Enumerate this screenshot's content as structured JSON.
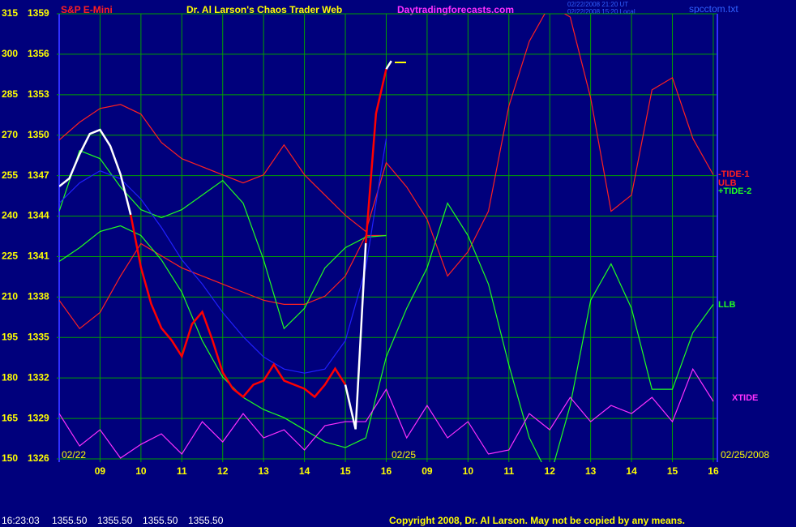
{
  "chart_data": {
    "type": "line",
    "title": "S&P E-Mini",
    "subtitle": "Dr. Al Larson's Chaos Trader Web",
    "site": "Daytradingforecasts.com",
    "timestamp_ut": "02/22/2008 21:20 UT",
    "timestamp_local": "02/22/2008 15:20 Local",
    "file": "spcctom.txt",
    "date_labels": [
      "02/22",
      "02/25",
      "02/25/2008"
    ],
    "status": {
      "time": "16:23:03",
      "quotes": [
        "1355.50",
        "1355.50",
        "1355.50",
        "1355.50"
      ]
    },
    "copyright": "Copyright 2008, Dr. Al Larson. May not be copied by any means.",
    "grid": true,
    "grid_color": "#00a000",
    "background": "#00007c",
    "xlim": [
      8,
      24.1
    ],
    "xticks": [
      {
        "value": 9,
        "label": "09"
      },
      10,
      11,
      12,
      13,
      14,
      15,
      16,
      {
        "value": 17,
        "label": "09"
      },
      {
        "value": 18,
        "label": "10"
      },
      {
        "value": 19,
        "label": "11"
      },
      {
        "value": 20,
        "label": "12"
      },
      {
        "value": 21,
        "label": "13"
      },
      {
        "value": 22,
        "label": "14"
      },
      {
        "value": 23,
        "label": "15"
      },
      {
        "value": 24,
        "label": "16"
      }
    ],
    "ylim": [
      1326,
      1359
    ],
    "yticks": [
      1326,
      1329,
      1332,
      1335,
      1338,
      1341,
      1344,
      1347,
      1350,
      1353,
      1356,
      1359
    ],
    "y2lim": [
      150,
      315
    ],
    "y2ticks": [
      150,
      165,
      180,
      195,
      210,
      225,
      240,
      255,
      270,
      285,
      300,
      315
    ],
    "x": [
      8,
      8.5,
      9,
      9.5,
      10,
      10.5,
      11,
      11.5,
      12,
      12.5,
      13,
      13.5,
      14,
      14.5,
      15,
      15.5,
      16,
      16.5,
      17,
      17.5,
      18,
      18.5,
      19,
      19.5,
      20,
      20.5,
      21,
      21.5,
      22,
      22.5,
      23,
      23.5,
      24
    ],
    "series": [
      {
        "name": "-TIDE-1",
        "color": "#ff2020",
        "axis": "y2",
        "values": [
          268.2,
          274.8,
          279.9,
          281.4,
          277.8,
          267.3,
          261.3,
          258.3,
          255.3,
          252.3,
          255.3,
          266.4,
          255.3,
          247.8,
          240.3,
          234.3,
          259.8,
          250.8,
          238.8,
          217.8,
          226.8,
          241.8,
          280.8,
          304.8,
          318.3,
          313.8,
          283.8,
          241.8,
          247.8,
          286.8,
          291.3,
          268.8,
          255.3
        ]
      },
      {
        "name": "ULB",
        "color": "#ff2020",
        "axis": "y2",
        "values": [
          208.8,
          198.3,
          204.3,
          217.8,
          229.8,
          225.3,
          220.8,
          217.8,
          214.8,
          211.8,
          208.8,
          207.3,
          207.3,
          210.3,
          217.8,
          232.8,
          232.8,
          null,
          null,
          null,
          null,
          null,
          null,
          null,
          null,
          null,
          null,
          null,
          null,
          null,
          null,
          null,
          null
        ]
      },
      {
        "name": "+TIDE-2",
        "color": "#20ff20",
        "axis": "y2",
        "values": [
          241.8,
          264.3,
          261.3,
          250.8,
          242.4,
          239.4,
          242.4,
          247.8,
          253.2,
          244.8,
          223.8,
          198.3,
          205.8,
          220.8,
          228.3,
          232.2,
          232.8,
          null,
          null,
          null,
          null,
          null,
          null,
          null,
          null,
          null,
          null,
          null,
          null,
          null,
          null,
          null,
          null
        ]
      },
      {
        "name": "LLB",
        "color": "#20ff20",
        "axis": "y2",
        "values": [
          223.2,
          228.3,
          234.3,
          236.4,
          232.8,
          223.8,
          211.8,
          193.8,
          180.3,
          172.8,
          168.3,
          165.3,
          160.8,
          156.3,
          154.2,
          157.8,
          187.8,
          205.8,
          220.8,
          244.8,
          232.8,
          214.8,
          184.8,
          157.8,
          142.8,
          169.8,
          208.8,
          222.3,
          205.8,
          175.8,
          175.8,
          196.8,
          207.3
        ]
      },
      {
        "name": "XTIDE",
        "color": "#ff30ff",
        "axis": "y2",
        "values": [
          166.8,
          154.8,
          160.8,
          150.3,
          155.4,
          159.3,
          151.8,
          163.8,
          156.3,
          166.8,
          157.8,
          160.8,
          153.3,
          162.3,
          163.8,
          163.8,
          175.8,
          157.8,
          169.8,
          157.8,
          163.8,
          151.8,
          153.3,
          166.8,
          160.8,
          172.8,
          163.8,
          169.8,
          166.8,
          172.8,
          163.8,
          183.3,
          171.3
        ]
      },
      {
        "color": "#2020ff",
        "axis": "y2",
        "values": [
          244.8,
          252.3,
          256.8,
          253.8,
          246.3,
          235.8,
          223.8,
          214.8,
          204.3,
          195.3,
          187.8,
          183.3,
          181.8,
          183.3,
          193.8,
          220.8,
          268.8,
          null,
          null,
          null,
          null,
          null,
          null,
          null,
          null,
          null,
          null,
          null,
          null,
          null,
          null,
          null,
          null
        ]
      },
      {
        "color": "#ffffff",
        "x": [
          8,
          8.25,
          8.5,
          8.75,
          9,
          9.25,
          9.5,
          9.75,
          10,
          10.25,
          10.5,
          10.75,
          11,
          11.25,
          11.5,
          11.75,
          12,
          12.25,
          12.5,
          12.75,
          13,
          13.25,
          13.5,
          13.75,
          14,
          14.25,
          14.5,
          14.75,
          15,
          15.25,
          15.5,
          15.75,
          16,
          16.125
        ],
        "values": [
          1346.2,
          1346.8,
          1348.6,
          1350.1,
          1350.4,
          1349.2,
          1347.1,
          1344.1,
          1340.2,
          1337.5,
          1335.7,
          1334.8,
          1333.6,
          1336.0,
          1336.9,
          1334.8,
          1332.4,
          1331.2,
          1330.6,
          1331.5,
          1331.8,
          1333.0,
          1331.8,
          1331.5,
          1331.2,
          1330.6,
          1331.5,
          1332.7,
          1331.5,
          1328.2,
          1342.0,
          1351.6,
          1354.9,
          1355.5
        ],
        "colors": [
          "#ffffff",
          "#ffffff",
          "#ffffff",
          "#ffffff",
          "#ffffff",
          "#ffffff",
          "#ffffff",
          "#ff0000",
          "#ff0000",
          "#ff0000",
          "#ff0000",
          "#ff0000",
          "#ff0000",
          "#ff0000",
          "#ff0000",
          "#ff0000",
          "#ff0000",
          "#ff0000",
          "#ff0000",
          "#ff0000",
          "#ff0000",
          "#ff0000",
          "#ff0000",
          "#ff0000",
          "#ff0000",
          "#ff0000",
          "#ff0000",
          "#ff0000",
          "#ffffff",
          "#ffffff",
          "#ff0000",
          "#ff0000",
          "#ffffff",
          "#ffffff"
        ]
      }
    ]
  }
}
